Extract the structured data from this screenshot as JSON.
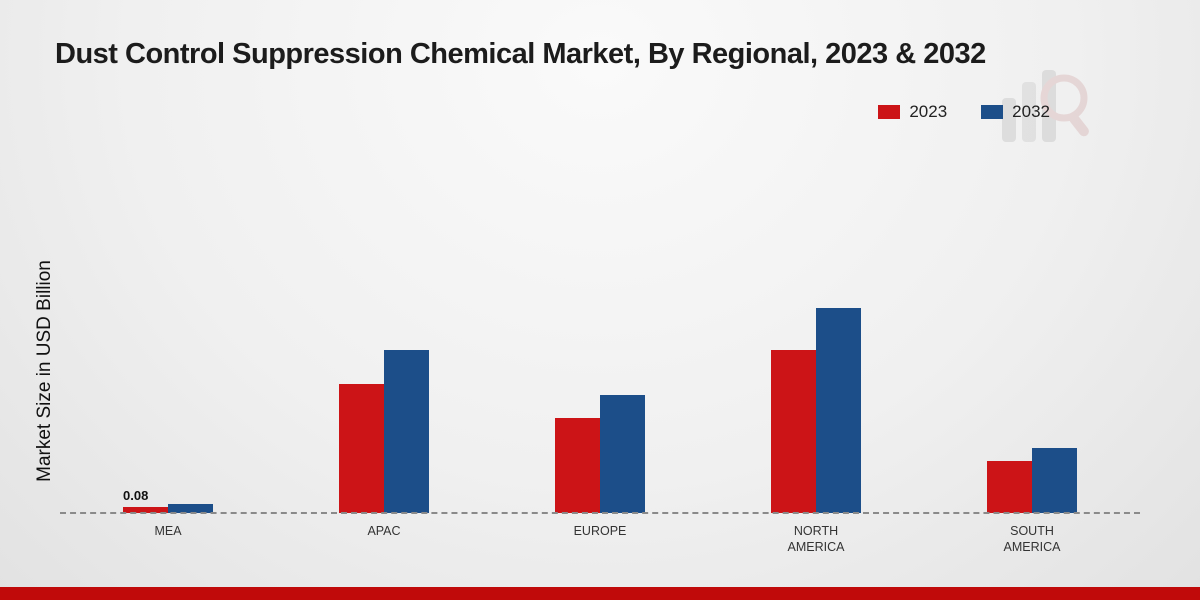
{
  "page": {
    "accent_strip_color": "#c00a0a",
    "background_top": "#fafafa",
    "background_bottom": "#e2e2e2"
  },
  "chart_data": {
    "type": "bar",
    "title": "Dust Control Suppression Chemical Market, By Regional, 2023 & 2032",
    "ylabel": "Market Size in USD Billion",
    "xlabel": "",
    "categories": [
      "MEA",
      "APAC",
      "EUROPE",
      "NORTH AMERICA",
      "SOUTH AMERICA"
    ],
    "series": [
      {
        "name": "2023",
        "color": "#cc1417",
        "values": [
          0.08,
          1.7,
          1.25,
          2.15,
          0.68
        ]
      },
      {
        "name": "2032",
        "color": "#1c4e89",
        "values": [
          0.12,
          2.15,
          1.55,
          2.7,
          0.85
        ]
      }
    ],
    "ylim": [
      0,
      3
    ],
    "grid": false,
    "baseline_style": "dashed",
    "legend_position": "top-right",
    "annotations": [
      {
        "category_index": 0,
        "series_index": 0,
        "text": "0.08"
      }
    ]
  },
  "watermark": {
    "icon": "bar-chart-magnifier-logo"
  }
}
